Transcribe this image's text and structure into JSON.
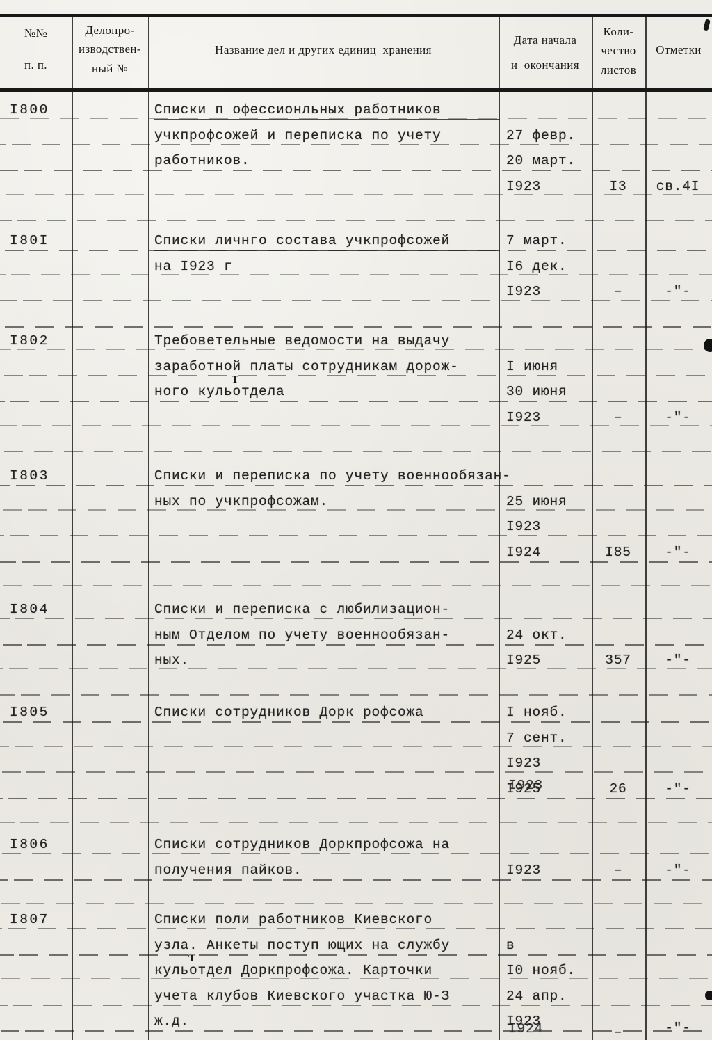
{
  "colors": {
    "paper": "#eeece6",
    "ink": "#222222",
    "rule": "#2d2d2d"
  },
  "header": {
    "col_num": [
      "№№",
      "п. п."
    ],
    "col_record": [
      "Делопро-",
      "изводствен-",
      "ный №"
    ],
    "col_title": "Название дел и других единиц  хранения",
    "col_date": [
      "Дата начала",
      "и  окончания"
    ],
    "col_qty": [
      "Коли-",
      "чество",
      "листов"
    ],
    "col_marks": "Отметки"
  },
  "annotations": {
    "inserted_letter": "Т"
  },
  "entries": [
    {
      "num": "I800",
      "lines": [
        {
          "name": "Списки п офессионльных работников",
          "u": true
        },
        {
          "name": "учкпрофсожей и переписка по учету",
          "date": "27 февр."
        },
        {
          "name": "работников.",
          "date": "20 март."
        },
        {
          "date": "I923",
          "qty": "I3",
          "marks": "св.4I"
        }
      ]
    },
    {
      "num": "I80I",
      "lines": [
        {
          "name": "Списки личнго состава учкпрофсожей",
          "u": true,
          "date": "7 март."
        },
        {
          "name": "на I923 г",
          "date": "I6 дек."
        },
        {
          "date": "I923",
          "qty": "–",
          "marks": "-\"-"
        }
      ]
    },
    {
      "num": "I802",
      "lines": [
        {
          "name": "Требоветельные ведомости на выдачу"
        },
        {
          "name": "заработной платы сотрудникам дорож-",
          "date": "I июня"
        },
        {
          "name": "ного кульотдела",
          "date": "30 июня"
        },
        {
          "date": "I923",
          "qty": "–",
          "marks": "-\"-"
        }
      ]
    },
    {
      "num": "I803",
      "lines": [
        {
          "name": "Списки и переписка по учету военнообязан-"
        },
        {
          "name": "ных по учкпрофсожам.",
          "date": "25 июня"
        },
        {
          "date": "I923"
        },
        {
          "date": "I924",
          "qty": "I85",
          "marks": "-\"-"
        }
      ]
    },
    {
      "num": "I804",
      "lines": [
        {
          "name": "Списки и переписка с любилизацион-"
        },
        {
          "name": "ным Отделом по учету военнообязан-",
          "date": "24 окт."
        },
        {
          "name": "ных.",
          "date": "I925",
          "qty": "357",
          "marks": "-\"-"
        }
      ]
    },
    {
      "num": "I805",
      "lines": [
        {
          "name": "Списки сотрудников Дорк рофсожа",
          "date": "I нояб."
        },
        {
          "date": "7 сент."
        },
        {
          "date": "I923"
        },
        {
          "date_over": [
            "I925",
            "I923"
          ],
          "qty": "26",
          "marks": "-\"-"
        }
      ]
    },
    {
      "num": "I806",
      "lines": [
        {
          "name": "Списки сотрудников Доркпрофсожа на"
        },
        {
          "name": "получения пайков.",
          "date": "I923",
          "qty": "–",
          "marks": "-\"-"
        }
      ]
    },
    {
      "num": "I807",
      "lines": [
        {
          "name": "Списки поли работников Киевского"
        },
        {
          "name": "узла. Анкеты поступ ющих на службу",
          "date": "в"
        },
        {
          "name": "кульотдел Доркпрофсожа. Карточки",
          "date": "I0 нояб."
        },
        {
          "name": "учета клубов Киевского участка Ю-З",
          "date": "24 апр."
        },
        {
          "name": "ж.д.",
          "date_over": [
            "I923",
            "I924"
          ],
          "qty": "–",
          "marks": "-\"-"
        }
      ]
    }
  ]
}
